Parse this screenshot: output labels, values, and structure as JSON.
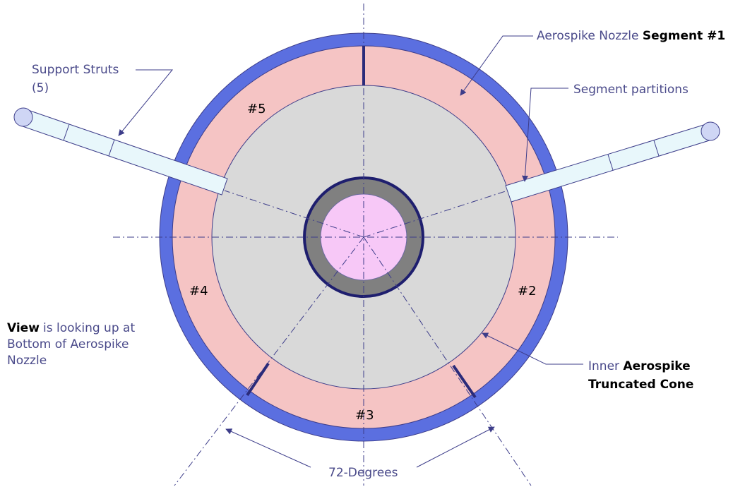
{
  "labels": {
    "support_struts_line1": "Support Struts",
    "support_struts_line2": "(5)",
    "nozzle_segment_plain": "Aerospike Nozzle ",
    "nozzle_segment_bold": "Segment #1",
    "segment_partitions": "Segment partitions",
    "inner_plain": "Inner ",
    "inner_bold_1": "Aerospike",
    "inner_bold_2": "Truncated Cone",
    "view_bold": "View",
    "view_rest_1": " is looking up at",
    "view_line2": "Bottom of Aerospike",
    "view_line3": "Nozzle",
    "degrees": "72-Degrees"
  },
  "segments": {
    "s2": "#2",
    "s3": "#3",
    "s4": "#4",
    "s5": "#5"
  },
  "colors": {
    "outer_ring": "#5b6fe0",
    "nozzle_ring": "#f5c4c4",
    "inner_disc": "#d9d9d9",
    "hub_ring": "#808080",
    "hub_center": "#f7c8f7",
    "strut_fill": "#e8f7fb",
    "strut_end": "#cfd6f5",
    "line": "#3d3d8a"
  }
}
